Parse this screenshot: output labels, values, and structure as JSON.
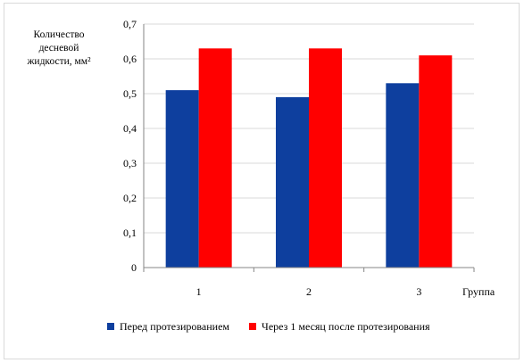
{
  "chart_data": {
    "type": "bar",
    "ylabel_lines": [
      "Количество",
      "десневой",
      "жидкости, мм²"
    ],
    "xlabel": "Группа",
    "categories": [
      "1",
      "2",
      "3"
    ],
    "ylim": [
      0,
      0.7
    ],
    "yticks": [
      "0",
      "0,1",
      "0,2",
      "0,3",
      "0,4",
      "0,5",
      "0,6",
      "0,7"
    ],
    "grid": true,
    "legend_position": "bottom",
    "series": [
      {
        "name": "Перед протезированием",
        "color": "#0e3f9e",
        "values": [
          0.51,
          0.49,
          0.53
        ]
      },
      {
        "name": "Через 1 месяц после протезирования",
        "color": "#ff0000",
        "values": [
          0.63,
          0.63,
          0.61
        ]
      }
    ]
  }
}
